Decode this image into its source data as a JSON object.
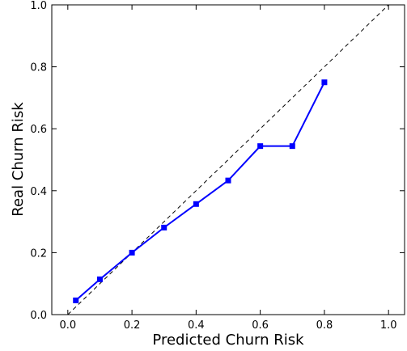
{
  "chart_data": {
    "type": "line",
    "title": "",
    "xlabel": "Predicted Churn Risk",
    "ylabel": "Real Churn Risk",
    "xlim": [
      -0.05,
      1.05
    ],
    "ylim": [
      0.0,
      1.0
    ],
    "grid": false,
    "x_ticks": [
      "0.0",
      "0.2",
      "0.4",
      "0.6",
      "0.8",
      "1.0"
    ],
    "y_ticks": [
      "0.0",
      "0.2",
      "0.4",
      "0.6",
      "0.8",
      "1.0"
    ],
    "reference_line": {
      "style": "dashed",
      "color": "#000000",
      "x": [
        0.0,
        1.0
      ],
      "y": [
        0.0,
        1.0
      ]
    },
    "series": [
      {
        "color": "#0000ff",
        "marker": "square",
        "x": [
          0.025,
          0.1,
          0.2,
          0.3,
          0.4,
          0.5,
          0.6,
          0.7,
          0.8
        ],
        "y": [
          0.046,
          0.114,
          0.2,
          0.281,
          0.357,
          0.433,
          0.544,
          0.544,
          0.75
        ]
      }
    ]
  }
}
